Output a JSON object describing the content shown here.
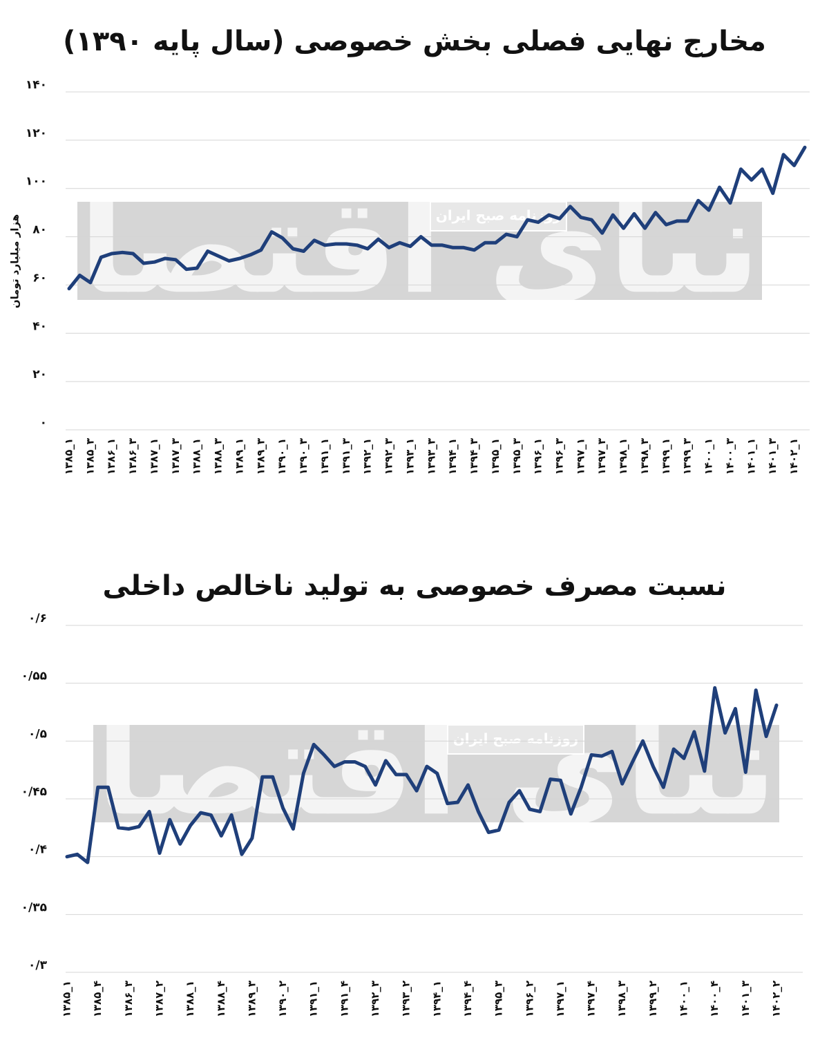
{
  "chart_data": [
    {
      "type": "line",
      "title": "مخارج نهایی فصلی بخش خصوصی (سال پایه ۱۳۹۰)",
      "y_label": "هزار میلیارد تومان",
      "watermark": "روزنامه صبح ایران",
      "logo": "دنیای اقتصاد",
      "categories": [
        "۱۳۸۵_۱",
        null,
        "۱۳۸۵_۳",
        null,
        "۱۳۸۶_۱",
        null,
        "۱۳۸۶_۳",
        null,
        "۱۳۸۷_۱",
        null,
        "۱۳۸۷_۳",
        null,
        "۱۳۸۸_۱",
        null,
        "۱۳۸۸_۳",
        null,
        "۱۳۸۹_۱",
        null,
        "۱۳۸۹_۳",
        null,
        "۱۳۹۰_۱",
        null,
        "۱۳۹۰_۳",
        null,
        "۱۳۹۱_۱",
        null,
        "۱۳۹۱_۳",
        null,
        "۱۳۹۲_۱",
        null,
        "۱۳۹۲_۳",
        null,
        "۱۳۹۳_۱",
        null,
        "۱۳۹۳_۳",
        null,
        "۱۳۹۴_۱",
        null,
        "۱۳۹۴_۳",
        null,
        "۱۳۹۵_۱",
        null,
        "۱۳۹۵_۳",
        null,
        "۱۳۹۶_۱",
        null,
        "۱۳۹۶_۳",
        null,
        "۱۳۹۷_۱",
        null,
        "۱۳۹۷_۳",
        null,
        "۱۳۹۸_۱",
        null,
        "۱۳۹۸_۳",
        null,
        "۱۳۹۹_۱",
        null,
        "۱۳۹۹_۳",
        null,
        "۱۴۰۰_۱",
        null,
        "۱۴۰۰_۳",
        null,
        "۱۴۰۱_۱",
        null,
        "۱۴۰۱_۳",
        null,
        "۱۴۰۲_۱",
        null
      ],
      "values": [
        58.5,
        64,
        61,
        71.5,
        73,
        73.5,
        73,
        69,
        69.5,
        71,
        70.5,
        66.5,
        67,
        74,
        72,
        70,
        71,
        72.5,
        74.5,
        82,
        79.5,
        75,
        74,
        78.5,
        76.5,
        77,
        77,
        76.5,
        75,
        79,
        75.5,
        77.5,
        76,
        80,
        76.5,
        76.5,
        75.5,
        75.5,
        74.5,
        77.5,
        77.5,
        81,
        80,
        87,
        86,
        89,
        87.5,
        92.5,
        88,
        87,
        81.5,
        89,
        83.5,
        89.5,
        83.5,
        90,
        85,
        86.5,
        86.5,
        95,
        91,
        100.5,
        94,
        108,
        103.5,
        108,
        98,
        114,
        109.5,
        117
      ],
      "color": "#1f3f7a",
      "ylim": [
        0,
        140
      ],
      "yticks": [
        {
          "value": 0,
          "label": "۰"
        },
        {
          "value": 20,
          "label": "۲۰"
        },
        {
          "value": 40,
          "label": "۴۰"
        },
        {
          "value": 60,
          "label": "۶۰"
        },
        {
          "value": 80,
          "label": "۸۰"
        },
        {
          "value": 100,
          "label": "۱۰۰"
        },
        {
          "value": 120,
          "label": "۱۲۰"
        },
        {
          "value": 140,
          "label": "۱۴۰"
        }
      ],
      "grid": true
    },
    {
      "type": "line",
      "title": "نسبت مصرف خصوصی به تولید ناخالص داخلی",
      "watermark": "روزنامه صبح ایران",
      "logo": "دنیای اقتصاد",
      "categories": [
        "۱۳۸۵_۱",
        null,
        null,
        "۱۳۸۵_۴",
        null,
        null,
        "۱۳۸۶_۳",
        null,
        null,
        "۱۳۸۷_۲",
        null,
        null,
        "۱۳۸۸_۱",
        null,
        null,
        "۱۳۸۸_۴",
        null,
        null,
        "۱۳۸۹_۳",
        null,
        null,
        "۱۳۹۰_۲",
        null,
        null,
        "۱۳۹۱_۱",
        null,
        null,
        "۱۳۹۱_۴",
        null,
        null,
        "۱۳۹۲_۳",
        null,
        null,
        "۱۳۹۳_۲",
        null,
        null,
        "۱۳۹۴_۱",
        null,
        null,
        "۱۳۹۴_۴",
        null,
        null,
        "۱۳۹۵_۳",
        null,
        null,
        "۱۳۹۶_۲",
        null,
        null,
        "۱۳۹۷_۱",
        null,
        null,
        "۱۳۹۷_۴",
        null,
        null,
        "۱۳۹۸_۳",
        null,
        null,
        "۱۳۹۹_۲",
        null,
        null,
        "۱۴۰۰_۱",
        null,
        null,
        "۱۴۰۰_۴",
        null,
        null,
        "۱۴۰۱_۳",
        null,
        null,
        "۱۴۰۲_۲"
      ],
      "values": [
        0.4,
        0.402,
        0.395,
        0.46,
        0.46,
        0.425,
        0.424,
        0.426,
        0.439,
        0.403,
        0.432,
        0.411,
        0.427,
        0.438,
        0.436,
        0.418,
        0.436,
        0.402,
        0.416,
        0.469,
        0.469,
        0.442,
        0.424,
        0.472,
        0.497,
        0.488,
        0.478,
        0.482,
        0.482,
        0.478,
        0.462,
        0.483,
        0.471,
        0.471,
        0.457,
        0.478,
        0.472,
        0.446,
        0.447,
        0.462,
        0.439,
        0.421,
        0.423,
        0.447,
        0.457,
        0.441,
        0.439,
        0.467,
        0.466,
        0.437,
        0.46,
        0.488,
        0.487,
        0.491,
        0.463,
        0.482,
        0.5,
        0.478,
        0.46,
        0.493,
        0.485,
        0.508,
        0.474,
        0.546,
        0.507,
        0.528,
        0.473,
        0.544,
        0.504,
        0.531
      ],
      "color": "#1f3f7a",
      "ylim": [
        0.3,
        0.6
      ],
      "yticks": [
        {
          "value": 0.3,
          "label": "۰/۳"
        },
        {
          "value": 0.35,
          "label": "۰/۳۵"
        },
        {
          "value": 0.4,
          "label": "۰/۴"
        },
        {
          "value": 0.45,
          "label": "۰/۴۵"
        },
        {
          "value": 0.5,
          "label": "۰/۵"
        },
        {
          "value": 0.55,
          "label": "۰/۵۵"
        },
        {
          "value": 0.6,
          "label": "۰/۶"
        }
      ],
      "grid": true
    }
  ]
}
